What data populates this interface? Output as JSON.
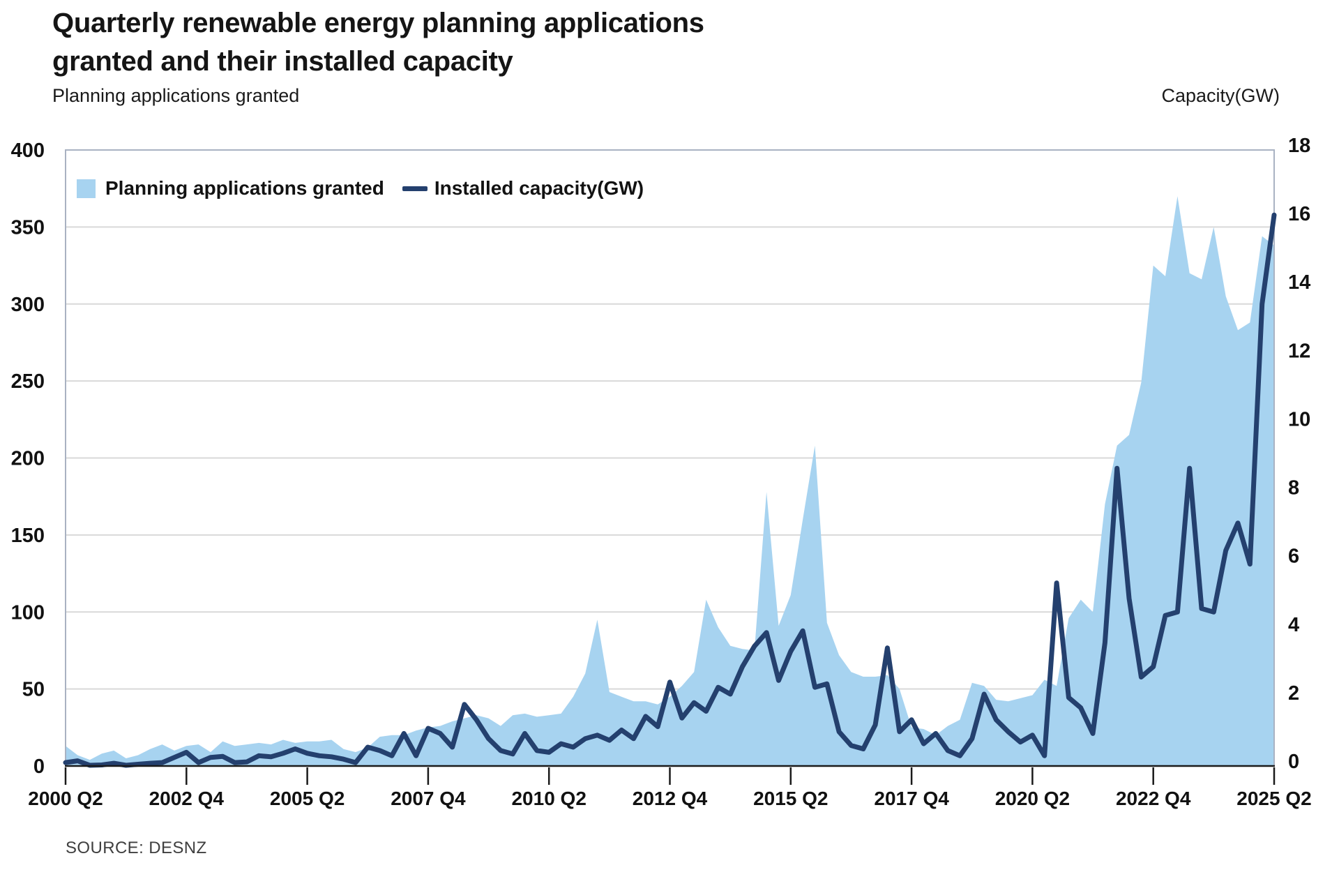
{
  "title": {
    "line1": "Quarterly renewable energy planning applications",
    "line2": "granted and their installed capacity"
  },
  "axes": {
    "left_label": "Planning applications granted",
    "right_label": "Capacity(GW)"
  },
  "legend": {
    "area_label": "Planning applications granted",
    "line_label": "Installed capacity(GW)"
  },
  "source": "SOURCE: DESNZ",
  "colors": {
    "area": "#a7d3f0",
    "line": "#24406e",
    "grid": "#d9d9d9",
    "plot_border": "#a9b2c2",
    "axis": "#1a1a1a",
    "text": "#111111",
    "source_text": "#3f3f3f"
  },
  "chart_data": {
    "type": "area",
    "subtype": "dual-axis area + line, quarterly time series",
    "title": "Quarterly renewable energy planning applications granted and their installed capacity",
    "xlabel": "",
    "ylabel_left": "Planning applications granted",
    "ylabel_right": "Capacity(GW)",
    "grid": true,
    "legend_position": "top-left-inside",
    "left_axis": {
      "min": 0,
      "max": 400,
      "ticks": [
        400,
        350,
        300,
        250,
        200,
        150,
        100,
        50,
        0
      ]
    },
    "right_axis": {
      "min": 0,
      "max": 18,
      "ticks": [
        18,
        16,
        14,
        12,
        10,
        8,
        6,
        4,
        2,
        0
      ]
    },
    "x_tick_labels": [
      "2000 Q2",
      "2002 Q4",
      "2005 Q2",
      "2007 Q4",
      "2010 Q2",
      "2012 Q4",
      "2015 Q2",
      "2017 Q4",
      "2020 Q2",
      "2022 Q4",
      "2025 Q2"
    ],
    "x_tick_positions": [
      0,
      10,
      20,
      30,
      40,
      50,
      60,
      70,
      80,
      90,
      100
    ],
    "categories": [
      "2000 Q2",
      "2000 Q3",
      "2000 Q4",
      "2001 Q1",
      "2001 Q2",
      "2001 Q3",
      "2001 Q4",
      "2002 Q1",
      "2002 Q2",
      "2002 Q3",
      "2002 Q4",
      "2003 Q1",
      "2003 Q2",
      "2003 Q3",
      "2003 Q4",
      "2004 Q1",
      "2004 Q2",
      "2004 Q3",
      "2004 Q4",
      "2005 Q1",
      "2005 Q2",
      "2005 Q3",
      "2005 Q4",
      "2006 Q1",
      "2006 Q2",
      "2006 Q3",
      "2006 Q4",
      "2007 Q1",
      "2007 Q2",
      "2007 Q3",
      "2007 Q4",
      "2008 Q1",
      "2008 Q2",
      "2008 Q3",
      "2008 Q4",
      "2009 Q1",
      "2009 Q2",
      "2009 Q3",
      "2009 Q4",
      "2010 Q1",
      "2010 Q2",
      "2010 Q3",
      "2010 Q4",
      "2011 Q1",
      "2011 Q2",
      "2011 Q3",
      "2011 Q4",
      "2012 Q1",
      "2012 Q2",
      "2012 Q3",
      "2012 Q4",
      "2013 Q1",
      "2013 Q2",
      "2013 Q3",
      "2013 Q4",
      "2014 Q1",
      "2014 Q2",
      "2014 Q3",
      "2014 Q4",
      "2015 Q1",
      "2015 Q2",
      "2015 Q3",
      "2015 Q4",
      "2016 Q1",
      "2016 Q2",
      "2016 Q3",
      "2016 Q4",
      "2017 Q1",
      "2017 Q2",
      "2017 Q3",
      "2017 Q4",
      "2018 Q1",
      "2018 Q2",
      "2018 Q3",
      "2018 Q4",
      "2019 Q1",
      "2019 Q2",
      "2019 Q3",
      "2019 Q4",
      "2020 Q1",
      "2020 Q2",
      "2020 Q3",
      "2020 Q4",
      "2021 Q1",
      "2021 Q2",
      "2021 Q3",
      "2021 Q4",
      "2022 Q1",
      "2022 Q2",
      "2022 Q3",
      "2022 Q4",
      "2023 Q1",
      "2023 Q2",
      "2023 Q3",
      "2023 Q4",
      "2024 Q1",
      "2024 Q2",
      "2024 Q3",
      "2024 Q4",
      "2025 Q1",
      "2025 Q2"
    ],
    "series": [
      {
        "name": "Planning applications granted",
        "axis": "left",
        "style": "area",
        "values": [
          13,
          7,
          4,
          8,
          10,
          5,
          7,
          11,
          14,
          10,
          13,
          14,
          9,
          16,
          13,
          14,
          15,
          14,
          17,
          15,
          16,
          16,
          17,
          11,
          9,
          12,
          19,
          20,
          20,
          23,
          25,
          26,
          29,
          31,
          33,
          31,
          26,
          33,
          34,
          32,
          33,
          34,
          45,
          60,
          95,
          48,
          45,
          42,
          42,
          40,
          45,
          52,
          61,
          108,
          90,
          78,
          76,
          75,
          178,
          91,
          111,
          160,
          208,
          93,
          72,
          61,
          58,
          58,
          59,
          50,
          25,
          24,
          20,
          26,
          30,
          54,
          52,
          43,
          42,
          44,
          46,
          56,
          52,
          96,
          108,
          100,
          170,
          208,
          215,
          249,
          325,
          318,
          370,
          320,
          316,
          350,
          305,
          283,
          288,
          344,
          338
        ]
      },
      {
        "name": "Installed capacity(GW)",
        "axis": "right",
        "style": "line",
        "values": [
          0.1,
          0.15,
          0.02,
          0.03,
          0.08,
          0.02,
          0.05,
          0.08,
          0.1,
          0.25,
          0.4,
          0.1,
          0.25,
          0.28,
          0.1,
          0.12,
          0.3,
          0.27,
          0.37,
          0.5,
          0.37,
          0.3,
          0.27,
          0.2,
          0.1,
          0.55,
          0.45,
          0.3,
          0.95,
          0.3,
          1.1,
          0.95,
          0.55,
          1.8,
          1.35,
          0.8,
          0.45,
          0.35,
          0.95,
          0.45,
          0.4,
          0.65,
          0.55,
          0.8,
          0.9,
          0.75,
          1.05,
          0.8,
          1.45,
          1.15,
          2.45,
          1.4,
          1.85,
          1.6,
          2.3,
          2.1,
          2.9,
          3.5,
          3.9,
          2.5,
          3.35,
          3.95,
          2.3,
          2.4,
          1.0,
          0.6,
          0.5,
          1.2,
          3.45,
          1.0,
          1.35,
          0.65,
          0.95,
          0.45,
          0.3,
          0.8,
          2.1,
          1.35,
          1.0,
          0.7,
          0.9,
          0.3,
          5.35,
          2.0,
          1.7,
          0.95,
          3.6,
          8.7,
          4.9,
          2.6,
          2.9,
          4.4,
          4.5,
          8.7,
          4.6,
          4.5,
          6.3,
          7.1,
          5.9,
          13.5,
          16.1
        ]
      }
    ]
  }
}
